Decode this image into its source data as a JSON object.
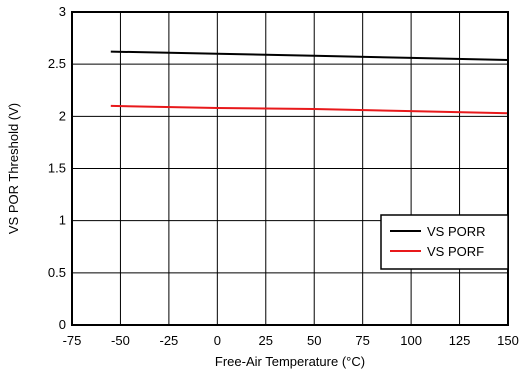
{
  "chart_data": {
    "type": "line",
    "title": "",
    "xlabel": "Free-Air Temperature (°C)",
    "ylabel": "VS POR Threshold (V)",
    "xlim": [
      -75,
      150
    ],
    "ylim": [
      0,
      3
    ],
    "xticks": [
      -75,
      -50,
      -25,
      0,
      25,
      50,
      75,
      100,
      125,
      150
    ],
    "yticks": [
      0,
      0.5,
      1,
      1.5,
      2,
      2.5,
      3
    ],
    "xtick_labels": [
      "-75",
      "-50",
      "-25",
      "0",
      "25",
      "50",
      "75",
      "100",
      "125",
      "150"
    ],
    "ytick_labels": [
      "0",
      "0.5",
      "1",
      "1.5",
      "2",
      "2.5",
      "3"
    ],
    "grid": true,
    "legend_position": "bottom-right",
    "series": [
      {
        "name": "VS PORR",
        "color": "#000000",
        "x": [
          -55,
          0,
          50,
          100,
          150
        ],
        "y": [
          2.62,
          2.6,
          2.58,
          2.56,
          2.54
        ]
      },
      {
        "name": "VS PORF",
        "color": "#e8191b",
        "x": [
          -55,
          0,
          50,
          100,
          150
        ],
        "y": [
          2.1,
          2.08,
          2.07,
          2.05,
          2.03
        ]
      }
    ]
  }
}
